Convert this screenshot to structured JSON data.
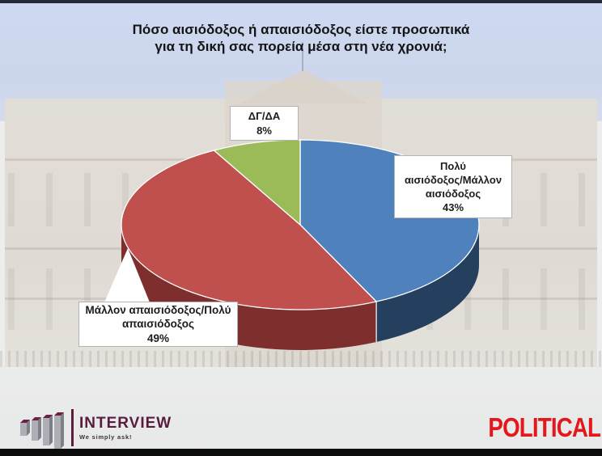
{
  "title": {
    "line1": "Πόσο αισιόδοξος ή απαισιόδοξος είστε προσωπικά",
    "line2": "για τη δική σας πορεία μέσα στη νέα χρονιά;"
  },
  "chart_data": {
    "type": "pie",
    "style": "3d",
    "title": "Πόσο αισιόδοξος ή απαισιόδοξος είστε προσωπικά για τη δική σας πορεία μέσα στη νέα χρονιά;",
    "start_angle_deg": 0,
    "direction": "clockwise",
    "unit": "%",
    "legend_position": "none",
    "slices": [
      {
        "id": "optimistic",
        "label": "Πολύ αισιόδοξος/Μάλλον αισιόδοξος",
        "value": 43,
        "display_value": "43%",
        "color": "#4f81bd",
        "side_color": "#25405f"
      },
      {
        "id": "pessimistic",
        "label": "Μάλλον απαισιόδοξος/Πολύ απαισιόδοξος",
        "value": 49,
        "display_value": "49%",
        "color": "#c0504d",
        "side_color": "#7e2f2d"
      },
      {
        "id": "dk-da",
        "label": "ΔΓ/ΔΑ",
        "value": 8,
        "display_value": "8%",
        "color": "#9bbb59",
        "side_color": "#6f8a3a"
      }
    ]
  },
  "callouts": {
    "dkda": {
      "lines": [
        "ΔΓ/ΔΑ"
      ],
      "value": "8%"
    },
    "optimist": {
      "lines": [
        "Πολύ",
        "αισιόδοξος/Μάλλον",
        "αισιόδοξος"
      ],
      "value": "43%"
    },
    "pessimist": {
      "lines": [
        "Μάλλον απαισιόδοξος/Πολύ",
        "απαισιόδοξος"
      ],
      "value": "49%"
    }
  },
  "branding": {
    "interview": {
      "name": "INTERVIEW",
      "tagline": "We simply ask!",
      "accent_color": "#5c1c3f"
    },
    "political": {
      "name": "POLITICAL",
      "color": "#e4181c"
    }
  }
}
